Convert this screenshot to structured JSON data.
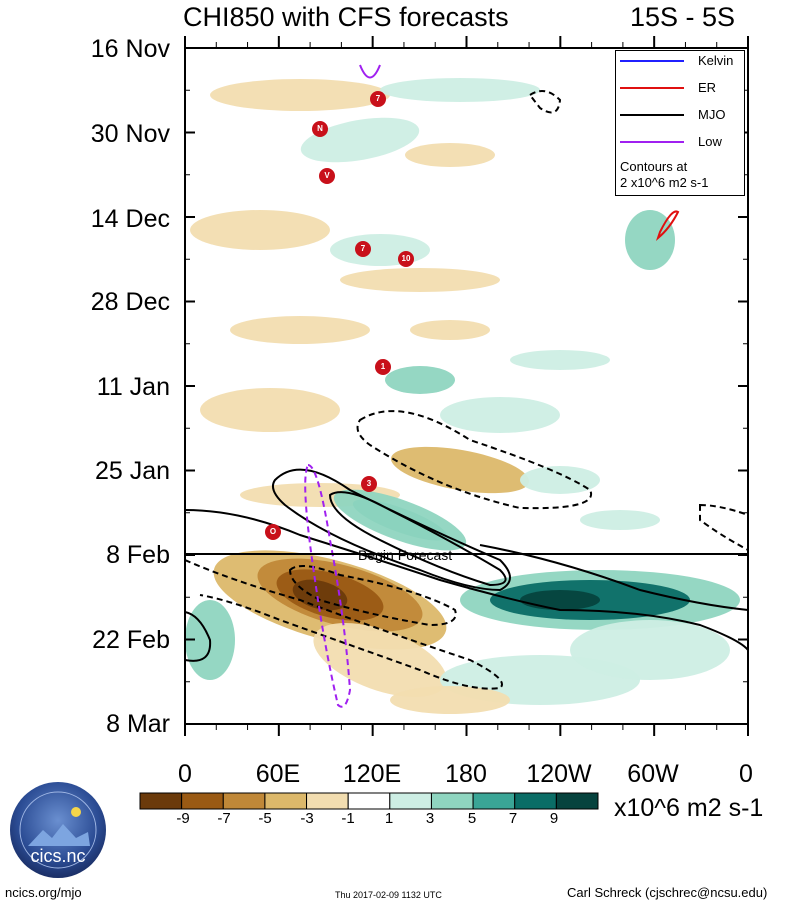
{
  "chart_data": {
    "type": "heatmap",
    "title": "CHI850 with CFS forecasts",
    "region": "15S - 5S",
    "x_axis": {
      "ticks": [
        "0",
        "60E",
        "120E",
        "180",
        "120W",
        "60W",
        "0"
      ],
      "range": [
        "0",
        "0"
      ]
    },
    "y_axis": {
      "ticks": [
        "16 Nov",
        "30 Nov",
        "14 Dec",
        "28 Dec",
        "11 Jan",
        "25 Jan",
        "8 Feb",
        "22 Feb",
        "8 Mar"
      ]
    },
    "forecast_start": "8 Feb",
    "forecast_label": "Begin Forecast",
    "colorbar": {
      "levels": [
        "-9",
        "-7",
        "-5",
        "-3",
        "-1",
        "1",
        "3",
        "5",
        "7",
        "9"
      ],
      "colors": [
        "#6b3a0b",
        "#9a5a14",
        "#c08838",
        "#dcb86a",
        "#f2ddb0",
        "#ffffff",
        "#cdeee4",
        "#8fd5c0",
        "#3aa596",
        "#0a6d66",
        "#06433e"
      ],
      "units": "x10^6 m2 s-1"
    },
    "legend": {
      "entries": [
        {
          "label": "Kelvin",
          "color": "#2020ff"
        },
        {
          "label": "ER",
          "color": "#e01010"
        },
        {
          "label": "MJO",
          "color": "#000000"
        },
        {
          "label": "Low",
          "color": "#a020f0"
        }
      ],
      "contours_note_line1": "Contours at",
      "contours_note_line2": "2 x10^6 m2 s-1"
    },
    "storm_markers": [
      "7",
      "N",
      "V",
      "7",
      "10",
      "1",
      "3",
      "O"
    ]
  },
  "footer": {
    "website": "ncics.org/mjo",
    "timestamp": "Thu 2017-02-09 1132 UTC",
    "author": "Carl Schreck (cjschrec@ncsu.edu)",
    "logo_text": "cics.nc",
    "logo_ring_text": "Cooperative Institute for Climate and Satellites"
  }
}
